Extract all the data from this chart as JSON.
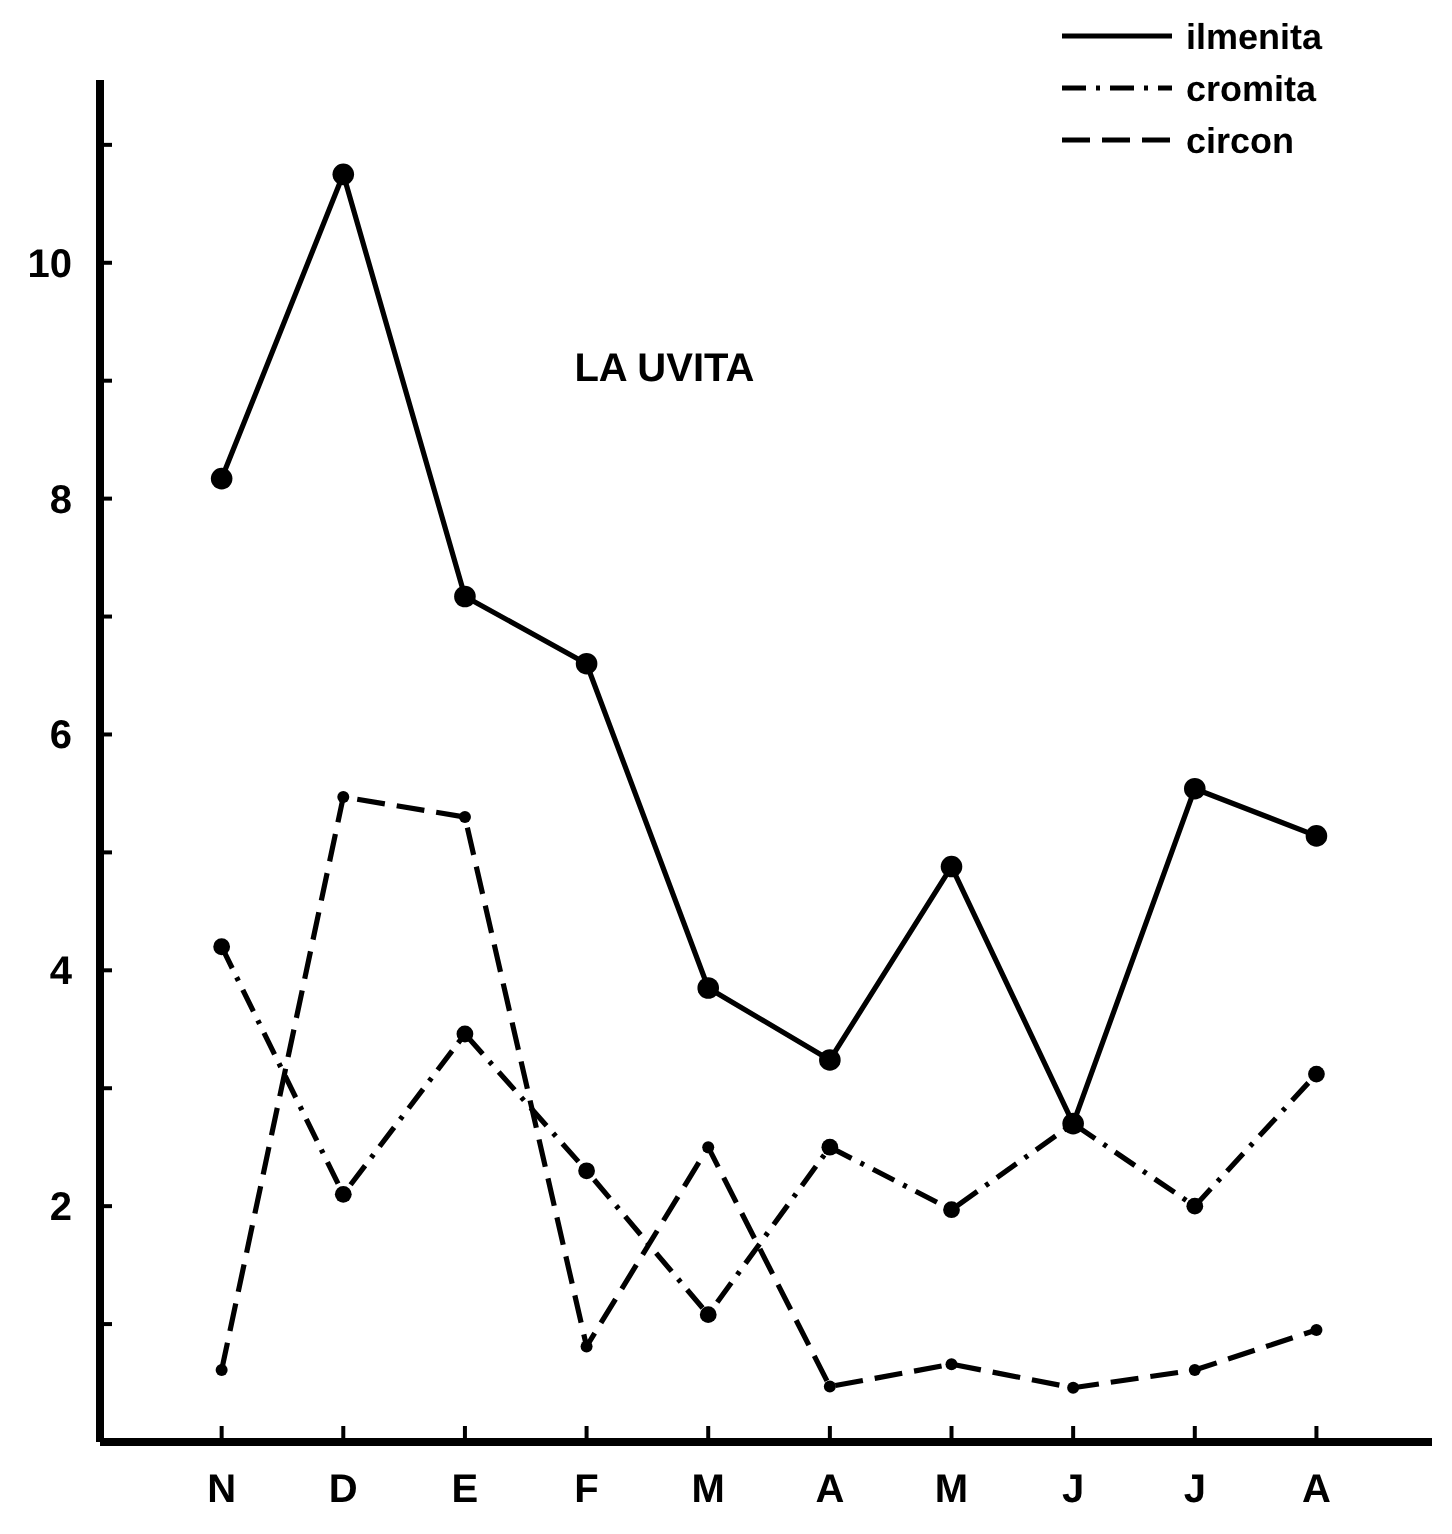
{
  "chart_data": {
    "type": "line",
    "title": "LA UVITA",
    "categories": [
      "N",
      "D",
      "E",
      "F",
      "M",
      "A",
      "M",
      "J",
      "J",
      "A"
    ],
    "ylim": [
      0,
      11.55
    ],
    "yticks": [
      {
        "value": 1,
        "label": null
      },
      2,
      {
        "value": 3,
        "label": null
      },
      4,
      {
        "value": 5,
        "label": null
      },
      6,
      {
        "value": 7,
        "label": null
      },
      8,
      {
        "value": 9,
        "label": null
      },
      10,
      {
        "value": 11,
        "label": null
      }
    ],
    "grid": false,
    "legend": "top right",
    "marker": "circle",
    "series": [
      {
        "name": "ilmenita",
        "color": "#000000",
        "line_style": "solid",
        "values": [
          8.17,
          10.75,
          7.17,
          6.6,
          3.85,
          3.24,
          4.88,
          2.7,
          5.54,
          5.14
        ]
      },
      {
        "name": "cromita",
        "color": "#000000",
        "line_style": "dashdot",
        "values": [
          4.2,
          2.1,
          3.46,
          2.3,
          1.08,
          2.5,
          1.97,
          2.7,
          2.0,
          3.12
        ]
      },
      {
        "name": "circon",
        "color": "#000000",
        "line_style": "dashed",
        "values": [
          0.61,
          5.47,
          5.3,
          0.81,
          2.5,
          0.47,
          0.66,
          0.46,
          0.61,
          0.95
        ]
      }
    ]
  }
}
